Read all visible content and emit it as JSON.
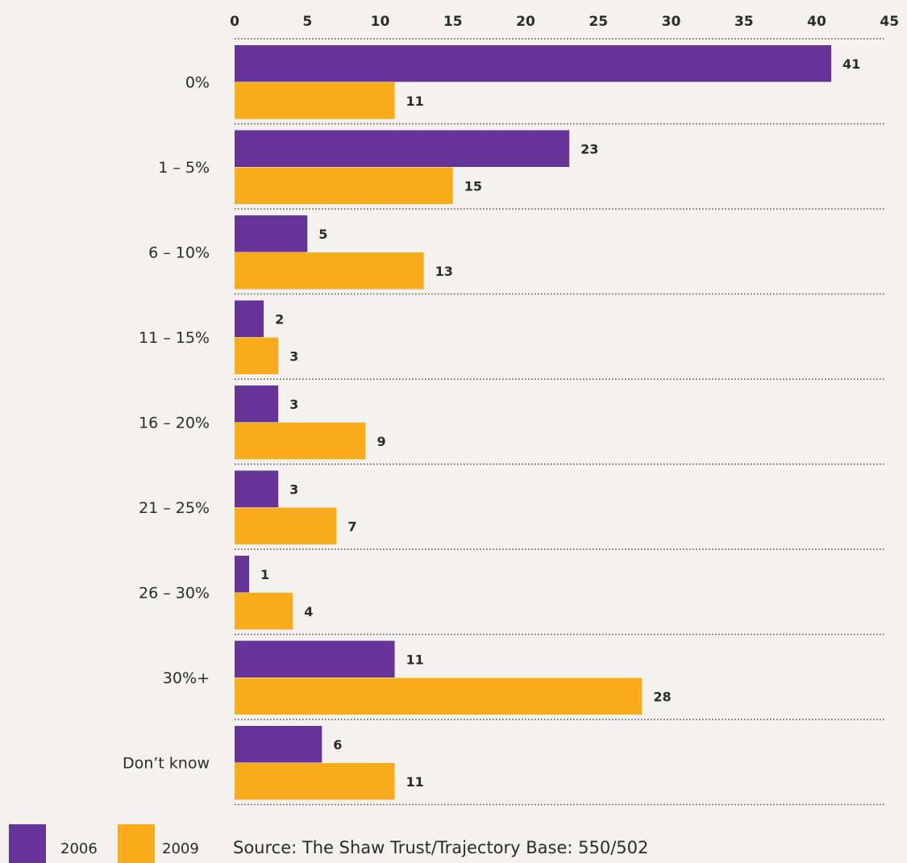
{
  "chart_data": {
    "type": "bar",
    "orientation": "horizontal",
    "categories": [
      "0%",
      "1 – 5%",
      "6 – 10%",
      "11 – 15%",
      "16 – 20%",
      "21 – 25%",
      "26 – 30%",
      "30%+",
      "Don’t know"
    ],
    "series": [
      {
        "name": "2006",
        "color": "#663399",
        "values": [
          41,
          23,
          5,
          2,
          3,
          3,
          1,
          11,
          6
        ]
      },
      {
        "name": "2009",
        "color": "#f9ac1b",
        "values": [
          11,
          15,
          13,
          3,
          9,
          7,
          4,
          28,
          11
        ]
      }
    ],
    "xlim": [
      0,
      45
    ],
    "xticks": [
      0,
      5,
      10,
      15,
      20,
      25,
      30,
      35,
      40,
      45
    ],
    "x_axis_position": "top",
    "grid": "dotted separators between categories",
    "legend_placement": "bottom-left",
    "source": "Source: The Shaw Trust/Trajectory Base: 550/502"
  }
}
